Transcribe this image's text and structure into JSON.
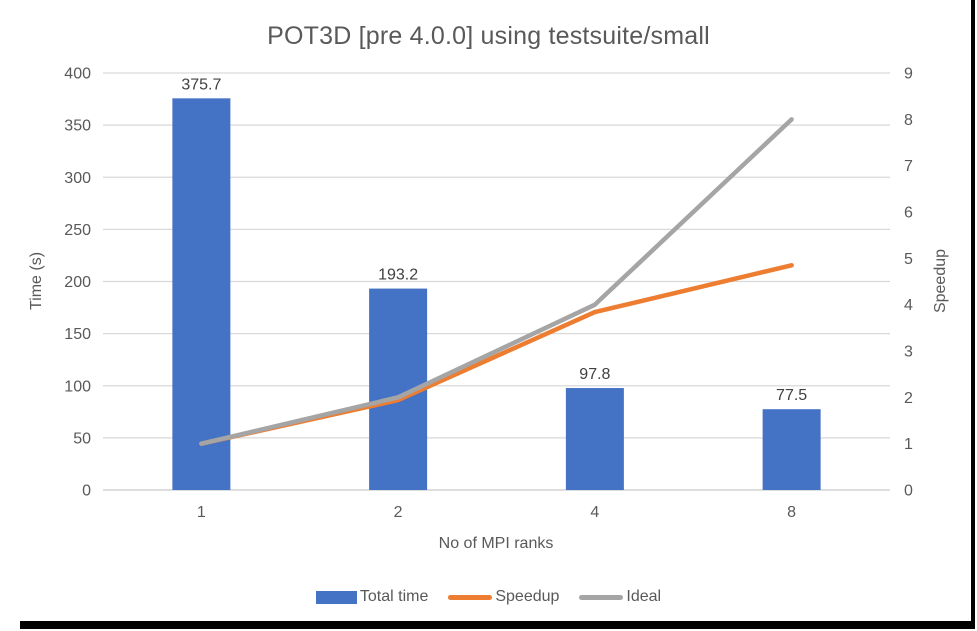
{
  "title": "POT3D [pre 4.0.0] using testsuite/small",
  "chart_data": {
    "type": "bar",
    "subtype": "bar-line-combo",
    "title": "POT3D [pre 4.0.0] using testsuite/small",
    "categories": [
      "1",
      "2",
      "4",
      "8"
    ],
    "xlabel": "No of MPI ranks",
    "left_axis": {
      "label": "Time (s)",
      "lim": [
        0,
        400
      ],
      "ticks": [
        0,
        50,
        100,
        150,
        200,
        250,
        300,
        350,
        400
      ]
    },
    "right_axis": {
      "label": "Speedup",
      "lim": [
        0,
        9
      ],
      "ticks": [
        0,
        1,
        2,
        3,
        4,
        5,
        6,
        7,
        8,
        9
      ]
    },
    "series": [
      {
        "name": "Total time",
        "type": "bar",
        "axis": "left",
        "color": "#4472C4",
        "values": [
          375.7,
          193.2,
          97.8,
          77.5
        ],
        "labels": [
          "375.7",
          "193.2",
          "97.8",
          "77.5"
        ]
      },
      {
        "name": "Speedup",
        "type": "line",
        "axis": "right",
        "color": "#ED7D31",
        "values": [
          1.0,
          1.94,
          3.84,
          4.85
        ]
      },
      {
        "name": "Ideal",
        "type": "line",
        "axis": "right",
        "color": "#A5A5A5",
        "values": [
          1,
          2,
          4,
          8
        ]
      }
    ],
    "legend": [
      "Total time",
      "Speedup",
      "Ideal"
    ],
    "legend_position": "bottom",
    "grid": true,
    "gridline_color": "#D9D9D9",
    "axisline_color": "#C9C9C9",
    "text_color": "#595959",
    "data_label_color": "#404040"
  }
}
